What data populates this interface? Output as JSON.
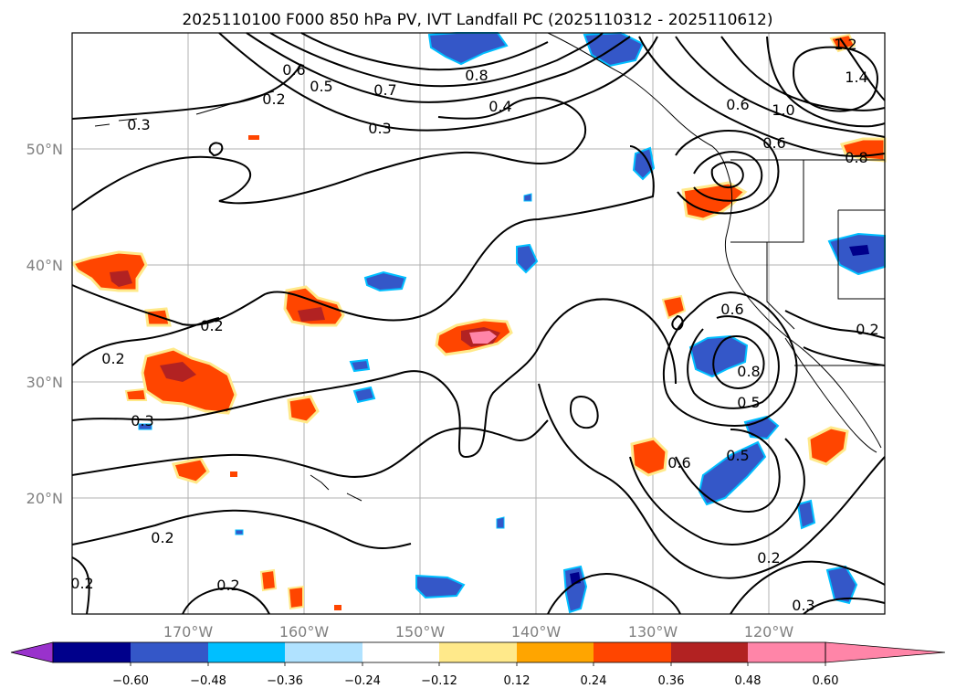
{
  "figure": {
    "title": "2025110100 F000 850 hPa PV, IVT Landfall PC (2025110312 - 2025110612)"
  },
  "map": {
    "lon_range": [
      -180,
      -110
    ],
    "lat_range": [
      10,
      60
    ],
    "lat_labels": [
      "50°N",
      "40°N",
      "30°N",
      "20°N"
    ],
    "lon_labels": [
      "170°W",
      "160°W",
      "150°W",
      "140°W",
      "130°W",
      "120°W"
    ],
    "contour_labels": [
      "0.2",
      "0.2",
      "0.2",
      "0.2",
      "0.2",
      "0.2",
      "0.2",
      "0.2",
      "0.3",
      "0.3",
      "0.3",
      "0.3",
      "0.4",
      "0.5",
      "0.5",
      "0.5",
      "0.6",
      "0.6",
      "0.6",
      "0.6",
      "0.6",
      "0.7",
      "0.8",
      "0.8",
      "0.8",
      "1.0",
      "1.2",
      "1.4"
    ]
  },
  "colorbar": {
    "levels": [
      -0.6,
      -0.48,
      -0.36,
      -0.24,
      -0.12,
      0.12,
      0.24,
      0.36,
      0.48,
      0.6
    ],
    "tick_labels": [
      "−0.60",
      "−0.48",
      "−0.36",
      "−0.24",
      "−0.12",
      "0.12",
      "0.24",
      "0.36",
      "0.48",
      "0.60"
    ],
    "colors": [
      "#9932cc",
      "#00008b",
      "#3457c8",
      "#00bfff",
      "#b0e2ff",
      "#ffffff",
      "#ffe98a",
      "#ffa500",
      "#ff4500",
      "#b22222",
      "#ff85a8"
    ]
  },
  "colors": {
    "neg_blue": "#3457c8",
    "neg_cyan": "#00bfff",
    "neg_dark": "#00008b",
    "pos_yellow": "#ffe98a",
    "pos_red": "#ff4500",
    "pos_dark": "#b22222",
    "pos_pink": "#ff85a8"
  }
}
